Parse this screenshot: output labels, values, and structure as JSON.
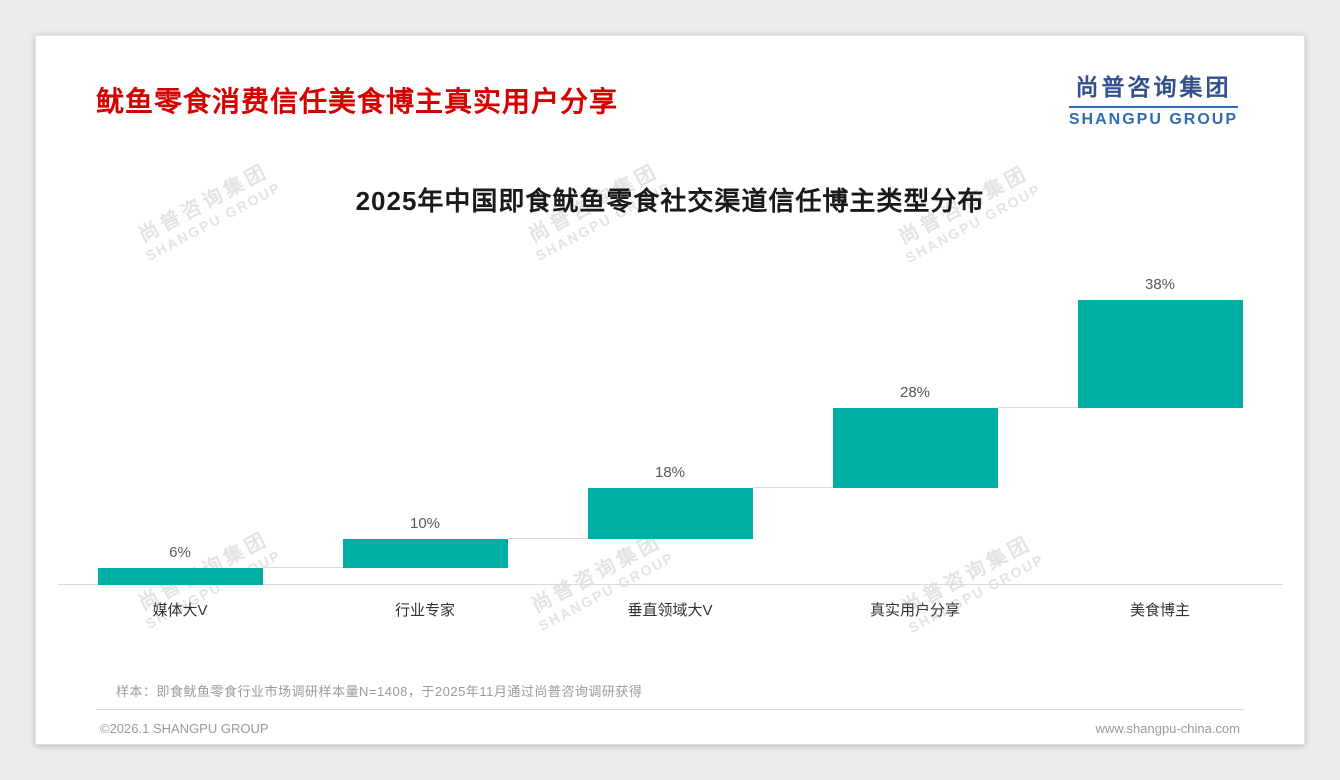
{
  "page": {
    "title": "鱿鱼零食消费信任美食博主真实用户分享",
    "logo": {
      "cn": "尚普咨询集团",
      "en": "SHANGPU GROUP"
    },
    "watermark": {
      "cn": "尚普咨询集团",
      "en": "SHANGPU GROUP"
    },
    "sample_note": "样本：即食鱿鱼零食行业市场调研样本量N=1408，于2025年11月通过尚普咨询调研获得",
    "footer": {
      "copyright": "©2026.1 SHANGPU GROUP",
      "website": "www.shangpu-china.com"
    }
  },
  "colors": {
    "bar_teal": "#00afa3",
    "title_red": "#d60000",
    "logo_blue_cn": "#35508f",
    "logo_blue_en": "#2e6cb5",
    "connector_gray": "#dcdcdc",
    "axis_gray": "#d9d9d9"
  },
  "chart_data": {
    "type": "bar",
    "subtype": "waterfall",
    "title": "2025年中国即食鱿鱼零食社交渠道信任博主类型分布",
    "categories": [
      "媒体大V",
      "行业专家",
      "垂直领域大V",
      "真实用户分享",
      "美食博主"
    ],
    "values": [
      6,
      10,
      18,
      28,
      38
    ],
    "value_labels": [
      "6%",
      "10%",
      "18%",
      "28%",
      "38%"
    ],
    "cumulative_starts": [
      0,
      6,
      16,
      34,
      62
    ],
    "total": 100,
    "ylim": [
      0,
      100
    ],
    "xlabel": "",
    "ylabel": "",
    "grid": "off",
    "legend": "none",
    "bar_color": "#00afa3"
  }
}
